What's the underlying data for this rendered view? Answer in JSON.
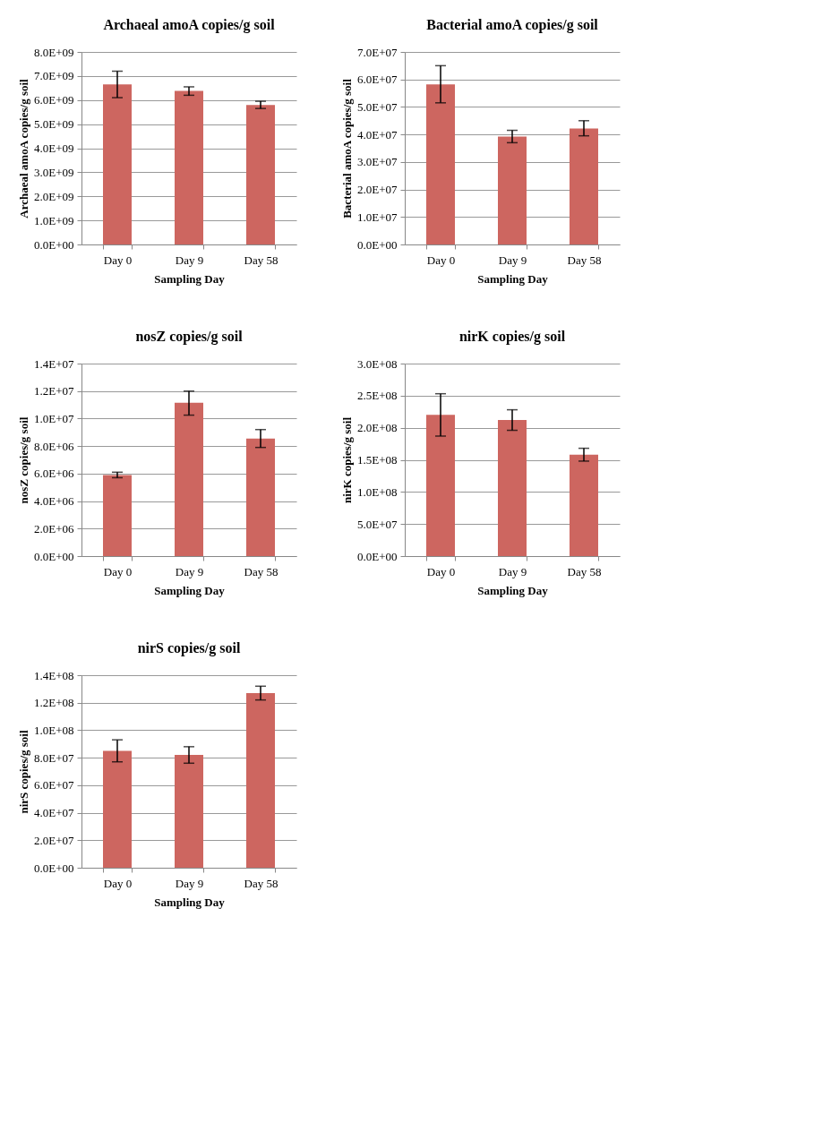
{
  "chart_data": [
    {
      "type": "bar",
      "title": "Archaeal amoA copies/g soil",
      "xlabel": "Sampling Day",
      "ylabel": "Archaeal amoA copies/g soil",
      "categories": [
        "Day 0",
        "Day 9",
        "Day 58"
      ],
      "series": [
        {
          "color": "#cd6660",
          "values": [
            6650000000,
            6380000000,
            5800000000
          ],
          "errors": [
            [
              6100000000,
              7200000000
            ],
            [
              6200000000,
              6550000000
            ],
            [
              5650000000,
              5950000000
            ]
          ]
        }
      ],
      "ylim": [
        0,
        8000000000
      ],
      "yticks": [
        {
          "value": 0,
          "label": "0.0E+00"
        },
        {
          "value": 1000000000,
          "label": "1.0E+09"
        },
        {
          "value": 2000000000,
          "label": "2.0E+09"
        },
        {
          "value": 3000000000,
          "label": "3.0E+09"
        },
        {
          "value": 4000000000,
          "label": "4.0E+09"
        },
        {
          "value": 5000000000,
          "label": "5.0E+09"
        },
        {
          "value": 6000000000,
          "label": "6.0E+09"
        },
        {
          "value": 7000000000,
          "label": "7.0E+09"
        },
        {
          "value": 8000000000,
          "label": "8.0E+09"
        }
      ],
      "grid": "y"
    },
    {
      "type": "bar",
      "title": "Bacterial amoA copies/g soil",
      "xlabel": "Sampling Day",
      "ylabel": "Bacterial amoA copies/g soil",
      "categories": [
        "Day 0",
        "Day 9",
        "Day 58"
      ],
      "series": [
        {
          "color": "#cd6660",
          "values": [
            58200000,
            39200000,
            42200000
          ],
          "errors": [
            [
              51500000,
              65000000
            ],
            [
              37000000,
              41500000
            ],
            [
              39500000,
              45000000
            ]
          ]
        }
      ],
      "ylim": [
        0,
        70000000
      ],
      "yticks": [
        {
          "value": 0,
          "label": "0.0E+00"
        },
        {
          "value": 10000000,
          "label": "1.0E+07"
        },
        {
          "value": 20000000,
          "label": "2.0E+07"
        },
        {
          "value": 30000000,
          "label": "3.0E+07"
        },
        {
          "value": 40000000,
          "label": "4.0E+07"
        },
        {
          "value": 50000000,
          "label": "5.0E+07"
        },
        {
          "value": 60000000,
          "label": "6.0E+07"
        },
        {
          "value": 70000000,
          "label": "7.0E+07"
        }
      ],
      "grid": "y"
    },
    {
      "type": "bar",
      "title": "nosZ copies/g soil",
      "xlabel": "Sampling Day",
      "ylabel": "nosZ copies/g soil",
      "categories": [
        "Day 0",
        "Day 9",
        "Day 58"
      ],
      "series": [
        {
          "color": "#cd6660",
          "values": [
            5900000,
            11150000,
            8550000
          ],
          "errors": [
            [
              5700000,
              6100000
            ],
            [
              10250000,
              12000000
            ],
            [
              7900000,
              9200000
            ]
          ]
        }
      ],
      "ylim": [
        0,
        14000000
      ],
      "yticks": [
        {
          "value": 0,
          "label": "0.0E+00"
        },
        {
          "value": 2000000,
          "label": "2.0E+06"
        },
        {
          "value": 4000000,
          "label": "4.0E+06"
        },
        {
          "value": 6000000,
          "label": "6.0E+06"
        },
        {
          "value": 8000000,
          "label": "8.0E+06"
        },
        {
          "value": 10000000,
          "label": "1.0E+07"
        },
        {
          "value": 12000000,
          "label": "1.2E+07"
        },
        {
          "value": 14000000,
          "label": "1.4E+07"
        }
      ],
      "grid": "y"
    },
    {
      "type": "bar",
      "title": "nirK copies/g soil",
      "xlabel": "Sampling Day",
      "ylabel": "nirK copies/g soil",
      "categories": [
        "Day 0",
        "Day 9",
        "Day 58"
      ],
      "series": [
        {
          "color": "#cd6660",
          "values": [
            220000000,
            212000000,
            158000000
          ],
          "errors": [
            [
              187000000,
              253000000
            ],
            [
              196000000,
              228000000
            ],
            [
              148000000,
              168000000
            ]
          ]
        }
      ],
      "ylim": [
        0,
        300000000
      ],
      "yticks": [
        {
          "value": 0,
          "label": "0.0E+00"
        },
        {
          "value": 50000000,
          "label": "5.0E+07"
        },
        {
          "value": 100000000,
          "label": "1.0E+08"
        },
        {
          "value": 150000000,
          "label": "1.5E+08"
        },
        {
          "value": 200000000,
          "label": "2.0E+08"
        },
        {
          "value": 250000000,
          "label": "2.5E+08"
        },
        {
          "value": 300000000,
          "label": "3.0E+08"
        }
      ],
      "grid": "y"
    },
    {
      "type": "bar",
      "title": "nirS copies/g soil",
      "xlabel": "Sampling Day",
      "ylabel": "nirS copies/g soil",
      "categories": [
        "Day 0",
        "Day 9",
        "Day 58"
      ],
      "series": [
        {
          "color": "#cd6660",
          "values": [
            85000000,
            82000000,
            127000000
          ],
          "errors": [
            [
              77000000,
              93000000
            ],
            [
              76000000,
              88000000
            ],
            [
              122000000,
              132000000
            ]
          ]
        }
      ],
      "ylim": [
        0,
        140000000
      ],
      "yticks": [
        {
          "value": 0,
          "label": "0.0E+00"
        },
        {
          "value": 20000000,
          "label": "2.0E+07"
        },
        {
          "value": 40000000,
          "label": "4.0E+07"
        },
        {
          "value": 60000000,
          "label": "6.0E+07"
        },
        {
          "value": 80000000,
          "label": "8.0E+07"
        },
        {
          "value": 100000000,
          "label": "1.0E+08"
        },
        {
          "value": 120000000,
          "label": "1.2E+08"
        },
        {
          "value": 140000000,
          "label": "1.4E+08"
        }
      ],
      "grid": "y"
    }
  ]
}
